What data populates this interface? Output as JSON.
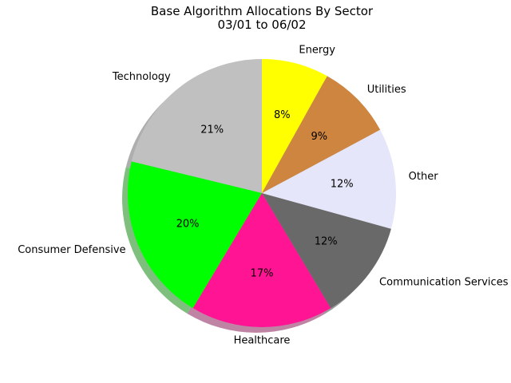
{
  "chart_data": {
    "type": "pie",
    "title": "Base Algorithm Allocations By Sector",
    "subtitle": "03/01 to 06/02",
    "start_angle_deg": 90,
    "direction": "counterclockwise",
    "shadow": true,
    "slices": [
      {
        "label": "Technology",
        "value": 21,
        "pct_label": "21%",
        "color": "#c0c0c0"
      },
      {
        "label": "Consumer Defensive",
        "value": 20,
        "pct_label": "20%",
        "color": "#00ff00"
      },
      {
        "label": "Healthcare",
        "value": 17,
        "pct_label": "17%",
        "color": "#ff1493"
      },
      {
        "label": "Communication Services",
        "value": 12,
        "pct_label": "12%",
        "color": "#696969"
      },
      {
        "label": "Other",
        "value": 12,
        "pct_label": "12%",
        "color": "#e6e6fa"
      },
      {
        "label": "Utilities",
        "value": 9,
        "pct_label": "9%",
        "color": "#cd853f"
      },
      {
        "label": "Energy",
        "value": 8,
        "pct_label": "8%",
        "color": "#ffff00"
      }
    ]
  }
}
